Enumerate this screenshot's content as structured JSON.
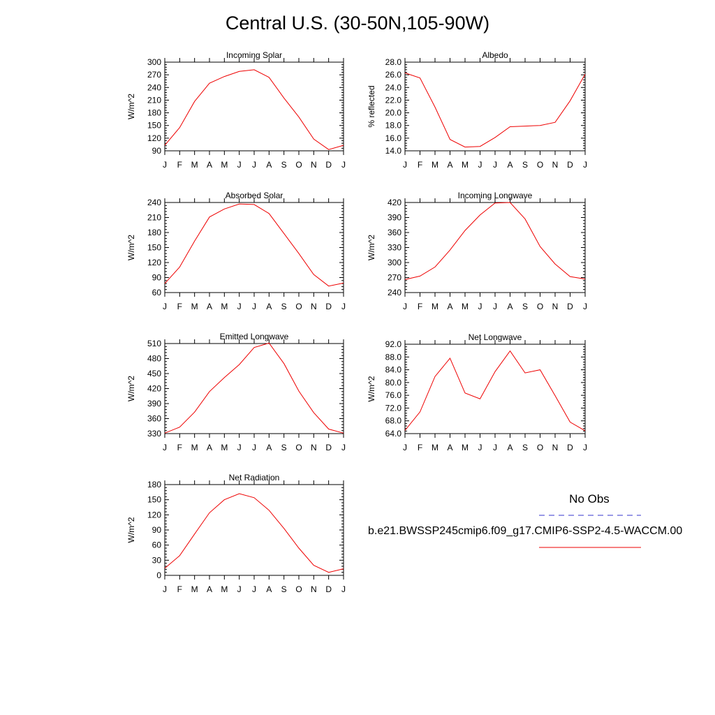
{
  "page": {
    "title": "Central U.S. (30-50N,105-90W)"
  },
  "legend": {
    "obs_label": "No Obs",
    "obs_color": "#3333cc",
    "model_label": "b.e21.BWSSP245cmip6.f09_g17.CMIP6-SSP2-4.5-WACCM.00",
    "model_color": "#ee0000"
  },
  "chart_data": [
    {
      "type": "line",
      "title": "Incoming Solar",
      "ylabel": "W/m^2",
      "categories": [
        "J",
        "F",
        "M",
        "A",
        "M",
        "J",
        "J",
        "A",
        "S",
        "O",
        "N",
        "D",
        "J"
      ],
      "ylim": [
        90,
        300
      ],
      "yticks": [
        90,
        120,
        150,
        180,
        210,
        240,
        270,
        300
      ],
      "ytick_labels": [
        "90",
        "120",
        "150",
        "180",
        "210",
        "240",
        "270",
        "300"
      ],
      "series": [
        {
          "values": [
            103,
            145,
            207,
            250,
            266,
            278,
            282,
            264,
            215,
            170,
            118,
            93,
            103
          ]
        }
      ]
    },
    {
      "type": "line",
      "title": "Albedo",
      "ylabel": "% reflected",
      "categories": [
        "J",
        "F",
        "M",
        "A",
        "M",
        "J",
        "J",
        "A",
        "S",
        "O",
        "N",
        "D",
        "J"
      ],
      "ylim": [
        14.0,
        28.0
      ],
      "yticks": [
        14,
        16,
        18,
        20,
        22,
        24,
        26,
        28
      ],
      "ytick_labels": [
        "14.0",
        "16.0",
        "18.0",
        "20.0",
        "22.0",
        "24.0",
        "26.0",
        "28.0"
      ],
      "series": [
        {
          "values": [
            26.3,
            25.5,
            20.9,
            15.8,
            14.6,
            14.7,
            16.1,
            17.8,
            17.9,
            18.0,
            18.5,
            21.9,
            26.1
          ]
        }
      ]
    },
    {
      "type": "line",
      "title": "Absorbed Solar",
      "ylabel": "W/m^2",
      "categories": [
        "J",
        "F",
        "M",
        "A",
        "M",
        "J",
        "J",
        "A",
        "S",
        "O",
        "N",
        "D",
        "J"
      ],
      "ylim": [
        60,
        240
      ],
      "yticks": [
        60,
        90,
        120,
        150,
        180,
        210,
        240
      ],
      "ytick_labels": [
        "60",
        "90",
        "120",
        "150",
        "180",
        "210",
        "240"
      ],
      "series": [
        {
          "values": [
            78,
            111,
            163,
            211,
            227,
            237,
            236,
            218,
            178,
            138,
            96,
            73,
            79
          ]
        }
      ]
    },
    {
      "type": "line",
      "title": "Incoming Longwave",
      "ylabel": "W/m^2",
      "categories": [
        "J",
        "F",
        "M",
        "A",
        "M",
        "J",
        "J",
        "A",
        "S",
        "O",
        "N",
        "D",
        "J"
      ],
      "ylim": [
        240,
        420
      ],
      "yticks": [
        240,
        270,
        300,
        330,
        360,
        390,
        420
      ],
      "ytick_labels": [
        "240",
        "270",
        "300",
        "330",
        "360",
        "390",
        "420"
      ],
      "series": [
        {
          "values": [
            266,
            273,
            291,
            325,
            364,
            395,
            419,
            420,
            387,
            332,
            297,
            272,
            267
          ]
        }
      ]
    },
    {
      "type": "line",
      "title": "Emitted Longwave",
      "ylabel": "W/m^2",
      "categories": [
        "J",
        "F",
        "M",
        "A",
        "M",
        "J",
        "J",
        "A",
        "S",
        "O",
        "N",
        "D",
        "J"
      ],
      "ylim": [
        330,
        510
      ],
      "yticks": [
        330,
        360,
        390,
        420,
        450,
        480,
        510
      ],
      "ytick_labels": [
        "330",
        "360",
        "390",
        "420",
        "450",
        "480",
        "510"
      ],
      "series": [
        {
          "values": [
            331,
            343,
            373,
            414,
            442,
            468,
            502,
            511,
            470,
            415,
            372,
            339,
            331
          ]
        }
      ]
    },
    {
      "type": "line",
      "title": "Net Longwave",
      "ylabel": "W/m^2",
      "categories": [
        "J",
        "F",
        "M",
        "A",
        "M",
        "J",
        "J",
        "A",
        "S",
        "O",
        "N",
        "D",
        "J"
      ],
      "ylim": [
        64.0,
        92.0
      ],
      "yticks": [
        64,
        68,
        72,
        76,
        80,
        84,
        88,
        92
      ],
      "ytick_labels": [
        "64.0",
        "68.0",
        "72.0",
        "76.0",
        "80.0",
        "84.0",
        "88.0",
        "92.0"
      ],
      "series": [
        {
          "values": [
            65.0,
            70.8,
            81.9,
            87.6,
            76.7,
            74.9,
            83.4,
            89.9,
            83.0,
            84.0,
            75.9,
            67.6,
            64.9
          ]
        }
      ]
    },
    {
      "type": "line",
      "title": "Net Radiation",
      "ylabel": "W/m^2",
      "categories": [
        "J",
        "F",
        "M",
        "A",
        "M",
        "J",
        "J",
        "A",
        "S",
        "O",
        "N",
        "D",
        "J"
      ],
      "ylim": [
        0,
        180
      ],
      "yticks": [
        0,
        30,
        60,
        90,
        120,
        150,
        180
      ],
      "ytick_labels": [
        "0",
        "30",
        "60",
        "90",
        "120",
        "150",
        "180"
      ],
      "series": [
        {
          "values": [
            14,
            39,
            82,
            124,
            150,
            162,
            154,
            129,
            93,
            54,
            20,
            6,
            13
          ]
        }
      ]
    }
  ]
}
